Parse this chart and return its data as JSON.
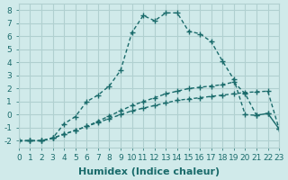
{
  "background_color": "#d0eaea",
  "grid_color": "#b0d0d0",
  "line_color": "#1a6b6b",
  "series": [
    {
      "x": [
        0,
        1,
        2,
        3,
        4,
        5,
        6,
        7,
        8,
        9,
        10,
        11,
        12,
        13,
        14,
        15,
        16,
        17,
        18,
        19,
        20,
        21,
        22,
        23
      ],
      "y": [
        -2,
        -2,
        -2,
        -1.8,
        -1.5,
        -1.2,
        -0.9,
        -0.6,
        -0.3,
        0.0,
        0.3,
        0.5,
        0.7,
        0.9,
        1.1,
        1.2,
        1.3,
        1.4,
        1.5,
        1.6,
        1.7,
        1.75,
        1.8,
        -1.1
      ]
    },
    {
      "x": [
        0,
        1,
        2,
        3,
        4,
        5,
        6,
        7,
        8,
        9,
        10,
        11,
        12,
        13,
        14,
        15,
        16,
        17,
        18,
        19,
        20,
        21,
        22,
        23
      ],
      "y": [
        -2,
        -2,
        -2,
        -1.8,
        -1.5,
        -1.2,
        -0.9,
        -0.5,
        -0.1,
        0.3,
        0.7,
        1.0,
        1.3,
        1.6,
        1.8,
        2.0,
        2.1,
        2.2,
        2.3,
        2.5,
        1.6,
        -0.05,
        0.1,
        -1.1
      ]
    },
    {
      "x": [
        0,
        1,
        2,
        3,
        4,
        5,
        6,
        7,
        8,
        9,
        10,
        11,
        12,
        13,
        14,
        15,
        16,
        17,
        18,
        19,
        20,
        21,
        22,
        23
      ],
      "y": [
        -2,
        -2,
        -2,
        -1.8,
        -0.7,
        -0.15,
        1.0,
        1.5,
        2.2,
        3.4,
        6.3,
        7.6,
        7.2,
        7.8,
        7.8,
        6.4,
        6.2,
        5.6,
        4.1,
        2.7,
        0.0,
        -0.05,
        0.1,
        -1.1
      ]
    }
  ],
  "xlabel": "Humidex (Indice chaleur)",
  "xlim": [
    0,
    23
  ],
  "ylim": [
    -2.5,
    8.5
  ],
  "xticks": [
    0,
    1,
    2,
    3,
    4,
    5,
    6,
    7,
    8,
    9,
    10,
    11,
    12,
    13,
    14,
    15,
    16,
    17,
    18,
    19,
    20,
    21,
    22,
    23
  ],
  "yticks": [
    -2,
    -1,
    0,
    1,
    2,
    3,
    4,
    5,
    6,
    7,
    8
  ],
  "xlabel_fontsize": 8,
  "tick_fontsize": 6.5
}
